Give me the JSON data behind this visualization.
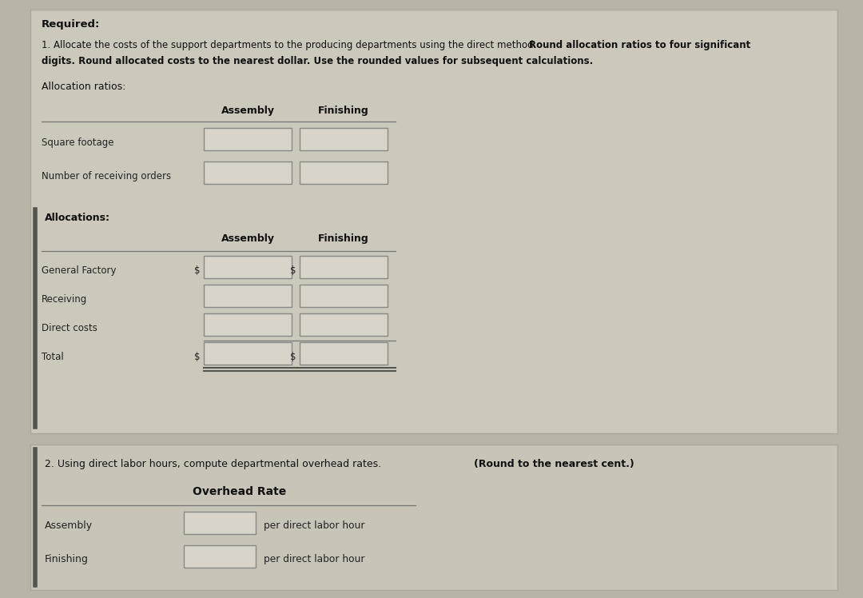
{
  "bg_color": "#b8b4a8",
  "panel1_bg": "#ccc8bc",
  "panel2_bg": "#c8c4b8",
  "title": "Required:",
  "line1_normal": "1. Allocate the costs of the support departments to the producing departments using the direct method. ",
  "line1_bold": "Round allocation ratios to four significant",
  "line2_bold": "digits. Round allocated costs to the nearest dollar. Use the rounded values for subsequent calculations.",
  "alloc_ratios_label": "Allocation ratios:",
  "col_headers_1": [
    "Assembly",
    "Finishing"
  ],
  "ratio_rows": [
    "Square footage",
    "Number of receiving orders"
  ],
  "allocations_label": "Allocations:",
  "col_headers_2": [
    "Assembly",
    "Finishing"
  ],
  "alloc_rows": [
    "General Factory",
    "Receiving",
    "Direct costs",
    "Total"
  ],
  "alloc_dollar_rows": [
    true,
    false,
    false,
    true
  ],
  "section2_normal": "2. Using direct labor hours, compute departmental overhead rates. ",
  "section2_bold": "(Round to the nearest cent.)",
  "overhead_label": "Overhead Rate",
  "overhead_rows": [
    "Assembly",
    "Finishing"
  ],
  "overhead_suffix": "per direct labor hour",
  "box_fill": "#d8d4ca",
  "box_edge": "#888884",
  "text_color": "#111111",
  "label_color": "#222222",
  "line_color": "#777774"
}
